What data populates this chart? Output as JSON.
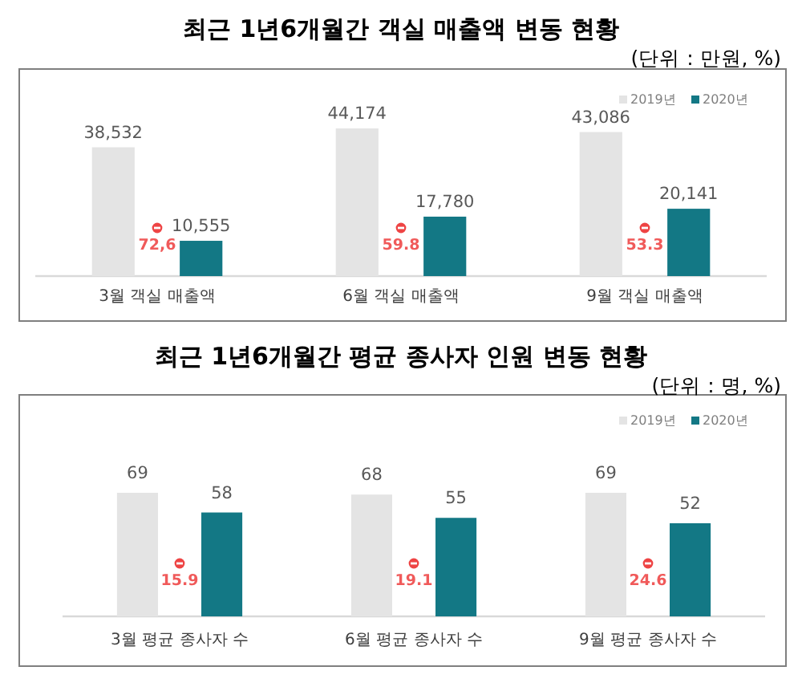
{
  "chart_data": [
    {
      "type": "bar",
      "title": "최근 1년6개월간 객실 매출액 변동 현황",
      "subtitle": "(단위 : 만원, %)",
      "categories": [
        "3월 객실 매출액",
        "6월 객실 매출액",
        "9월 객실 매출액"
      ],
      "series": [
        {
          "name": "2019년",
          "color": "#e4e4e4",
          "values": [
            38532,
            44174,
            43086
          ],
          "value_labels": [
            "38,532",
            "44,174",
            "43,086"
          ]
        },
        {
          "name": "2020년",
          "color": "#137885",
          "values": [
            10555,
            17780,
            20141
          ],
          "value_labels": [
            "10,555",
            "17,780",
            "20,141"
          ]
        }
      ],
      "tick_labels": "x",
      "legend": "top right",
      "annotations": [
        "72,6",
        "59.8",
        "53.3"
      ]
    },
    {
      "type": "bar",
      "title": "최근 1년6개월간 평균 종사자 인원 변동 현황",
      "subtitle": "(단위 : 명, %)",
      "categories": [
        "3월 평균 종사자 수",
        "6월 평균 종사자 수",
        "9월 평균 종사자 수"
      ],
      "series": [
        {
          "name": "2019년",
          "color": "#e4e4e4",
          "values": [
            69,
            68,
            69
          ]
        },
        {
          "name": "2020년",
          "color": "#137885",
          "values": [
            58,
            55,
            52
          ]
        }
      ],
      "tick_labels": "x",
      "data_labels": true,
      "legend": "top right",
      "annotations": [
        "15.9",
        "19.1",
        "24.6"
      ]
    }
  ]
}
